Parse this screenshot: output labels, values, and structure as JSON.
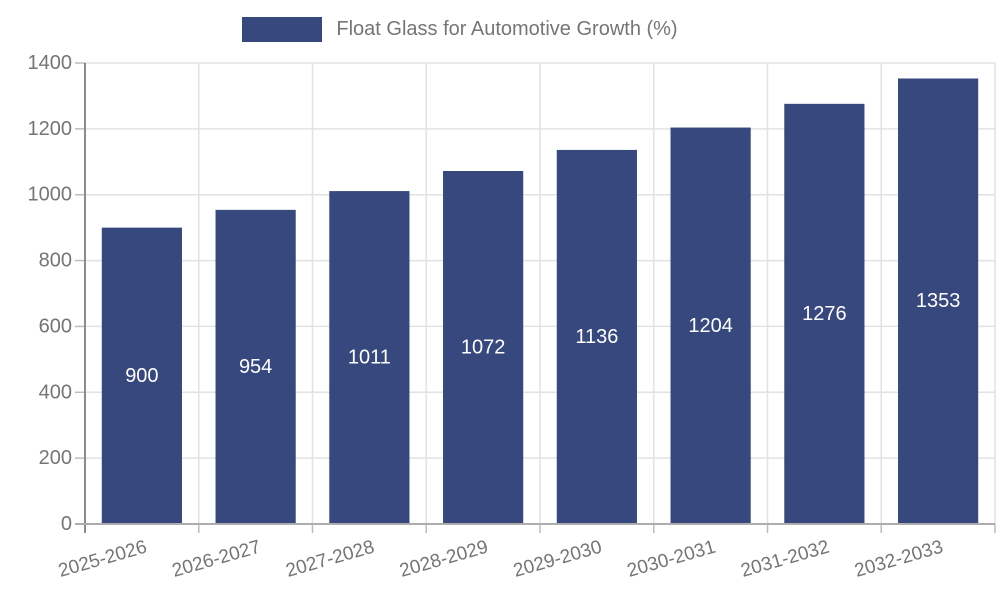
{
  "legend": {
    "items": [
      {
        "label": "Float Glass for Automotive Growth (%)",
        "color": "#36487E"
      }
    ]
  },
  "chart_data": {
    "type": "bar",
    "title": "",
    "xlabel": "",
    "ylabel": "",
    "categories": [
      "2025-2026",
      "2026-2027",
      "2027-2028",
      "2028-2029",
      "2029-2030",
      "2030-2031",
      "2031-2032",
      "2032-2033"
    ],
    "series": [
      {
        "name": "Float Glass for Automotive Growth (%)",
        "color": "#36487E",
        "values": [
          900,
          954,
          1011,
          1072,
          1136,
          1204,
          1276,
          1353
        ]
      }
    ],
    "value_labels": [
      "900",
      "954",
      "1011",
      "1072",
      "1136",
      "1204",
      "1276",
      "1353"
    ],
    "ytick_labels": [
      "0",
      "200",
      "400",
      "600",
      "800",
      "1000",
      "1200",
      "1400"
    ],
    "ylim": [
      0,
      1400
    ],
    "ytick_interval": 200,
    "grid": true,
    "legend_position": "top-center",
    "x_label_rotation_deg": -16,
    "colors": {
      "bar": "#36487E",
      "value_label_text": "#ffffff",
      "axis_text": "#757575",
      "gridline": "#e2e2e2",
      "y_axis_line": "#8b8b8b",
      "x_axis_line": "#adadad",
      "tick": "#bdbdbd"
    }
  }
}
